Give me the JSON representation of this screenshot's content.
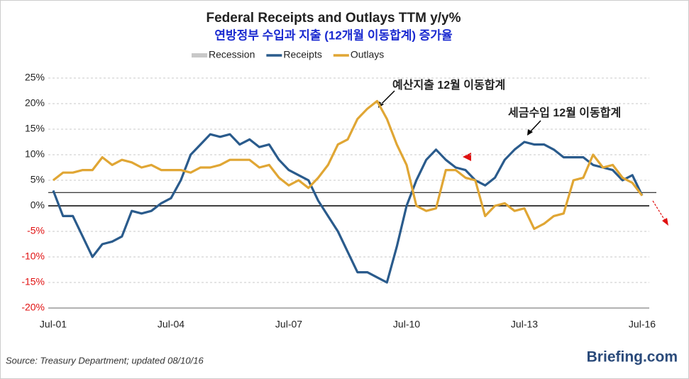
{
  "chart_data": {
    "type": "line",
    "title": "Federal Receipts and Outlays TTM y/y%",
    "subtitle": "연방정부 수입과 지출 (12개월 이동합계) 증가율",
    "categories": [
      "Jul-01",
      null,
      null,
      null,
      null,
      null,
      null,
      null,
      null,
      null,
      null,
      null,
      "Jul-04",
      null,
      null,
      null,
      null,
      null,
      null,
      null,
      null,
      null,
      null,
      null,
      "Jul-07",
      null,
      null,
      null,
      null,
      null,
      null,
      null,
      null,
      null,
      null,
      null,
      "Jul-10",
      null,
      null,
      null,
      null,
      null,
      null,
      null,
      null,
      null,
      null,
      null,
      "Jul-13",
      null,
      null,
      null,
      null,
      null,
      null,
      null,
      null,
      null,
      null,
      null,
      "Jul-16"
    ],
    "recession": {
      "name": "Recession",
      "color": "#c8c8c8"
    },
    "series": [
      {
        "name": "Receipts",
        "color": "#2a5b8c",
        "values": [
          3,
          -2,
          -2,
          -6,
          -10,
          -7.5,
          -7,
          -6,
          -1,
          -1.5,
          -1,
          0.5,
          1.5,
          5,
          10,
          12,
          14,
          13.5,
          14,
          12,
          13,
          11.5,
          12,
          9,
          7,
          6,
          5,
          1,
          -2,
          -5,
          -9,
          -13,
          -13,
          -14,
          -15,
          -8,
          0,
          5,
          9,
          11,
          9,
          7.5,
          7,
          5,
          4,
          5.5,
          9,
          11,
          12.5,
          12,
          12,
          11,
          9.5,
          9.5,
          9.5,
          8,
          7.5,
          7,
          5,
          6,
          2
        ]
      },
      {
        "name": "Outlays",
        "color": "#e0a634",
        "values": [
          5,
          6.5,
          6.5,
          7,
          7,
          9.5,
          8,
          9,
          8.5,
          7.5,
          8,
          7,
          7,
          7,
          6.5,
          7.5,
          7.5,
          8,
          9,
          9,
          9,
          7.5,
          8,
          5.5,
          4,
          5,
          3.5,
          5.5,
          8,
          12,
          13,
          17,
          19,
          20.5,
          17,
          12,
          8,
          0,
          -1,
          -0.5,
          7,
          7,
          5.5,
          5,
          -2,
          0,
          0.5,
          -1,
          -0.5,
          -4.5,
          -3.5,
          -2,
          -1.5,
          5,
          5.5,
          10,
          7.5,
          8,
          5.5,
          4.5,
          2
        ]
      }
    ],
    "ylim": [
      -20,
      25
    ],
    "yticks": [
      {
        "value": -20,
        "label": "-20%"
      },
      {
        "value": -15,
        "label": "-15%"
      },
      {
        "value": -10,
        "label": "-10%"
      },
      {
        "value": -5,
        "label": "-5%"
      },
      {
        "value": 0,
        "label": "0%"
      },
      {
        "value": 5,
        "label": "5%"
      },
      {
        "value": 10,
        "label": "10%"
      },
      {
        "value": 15,
        "label": "15%"
      },
      {
        "value": 20,
        "label": "20%"
      },
      {
        "value": 25,
        "label": "25%"
      }
    ],
    "grid": true,
    "negative_label_color": "#e01010",
    "reference_line": 2.6,
    "annotations": [
      "예산지출 12월 이동합계",
      "세금수입 12월 이동합계"
    ],
    "source": "Source: Treasury Department; updated 08/10/16",
    "brand": "Briefing.com"
  }
}
